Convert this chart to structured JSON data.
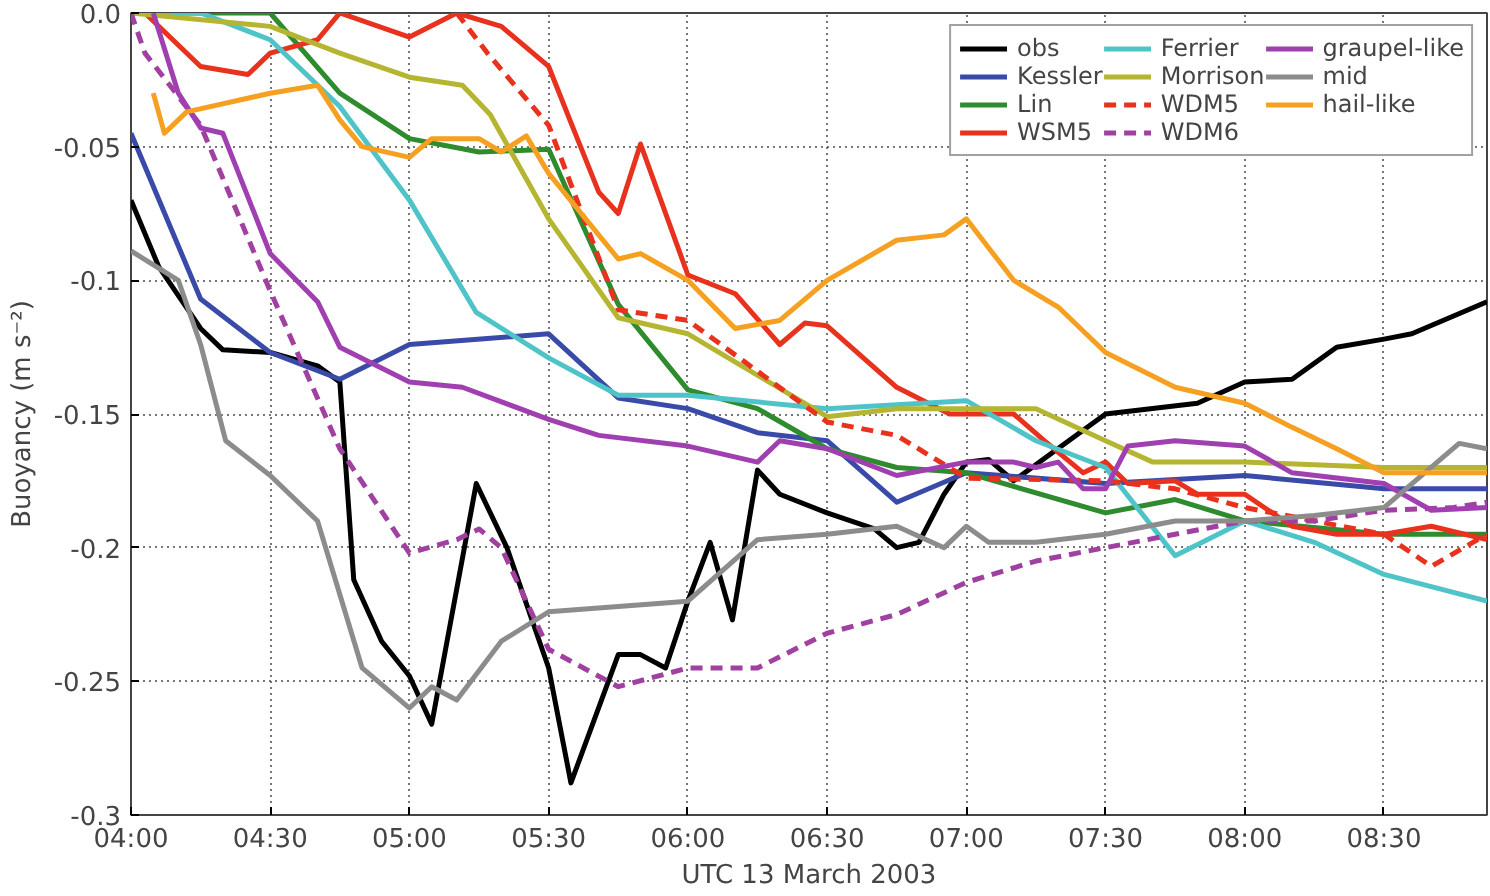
{
  "chart_data": {
    "type": "line",
    "xlabel": "UTC 13 March 2003",
    "ylabel": "Buoyancy (m s⁻²)",
    "xlim": [
      4,
      8.87
    ],
    "ylim": [
      -0.3,
      0
    ],
    "xticks": [
      {
        "value": 4,
        "label": "04:00"
      },
      {
        "value": 4.5,
        "label": "04:30"
      },
      {
        "value": 5,
        "label": "05:00"
      },
      {
        "value": 5.5,
        "label": "05:30"
      },
      {
        "value": 6,
        "label": "06:00"
      },
      {
        "value": 6.5,
        "label": "06:30"
      },
      {
        "value": 7,
        "label": "07:00"
      },
      {
        "value": 7.5,
        "label": "07:30"
      },
      {
        "value": 8,
        "label": "08:00"
      },
      {
        "value": 8.5,
        "label": "08:30"
      }
    ],
    "yticks": [
      {
        "value": 0,
        "label": "0.0"
      },
      -0.05,
      -0.1,
      -0.15,
      -0.2,
      -0.25,
      -0.3
    ],
    "grid": true,
    "legend": "top right",
    "series": [
      {
        "name": "obs",
        "color": "#000000",
        "line_style": "solid",
        "x": [
          4.0,
          4.1,
          4.25,
          4.33,
          4.5,
          4.67,
          4.75,
          4.8,
          4.9,
          5.0,
          5.08,
          5.24,
          5.35,
          5.5,
          5.58,
          5.75,
          5.83,
          5.92,
          6.0,
          6.08,
          6.16,
          6.25,
          6.33,
          6.5,
          6.67,
          6.75,
          6.83,
          6.92,
          7.0,
          7.08,
          7.17,
          7.5,
          7.83,
          8.0,
          8.17,
          8.33,
          8.5,
          8.6,
          8.87
        ],
        "values": [
          -0.07,
          -0.095,
          -0.118,
          -0.126,
          -0.127,
          -0.132,
          -0.138,
          -0.212,
          -0.235,
          -0.248,
          -0.266,
          -0.176,
          -0.2,
          -0.245,
          -0.288,
          -0.24,
          -0.24,
          -0.245,
          -0.22,
          -0.198,
          -0.227,
          -0.171,
          -0.18,
          -0.187,
          -0.193,
          -0.2,
          -0.198,
          -0.18,
          -0.168,
          -0.167,
          -0.175,
          -0.15,
          -0.146,
          -0.138,
          -0.137,
          -0.125,
          -0.122,
          -0.12,
          -0.108
        ]
      },
      {
        "name": "Kessler",
        "color": "#3a4aa8",
        "line_style": "solid",
        "x": [
          4.0,
          4.25,
          4.5,
          4.75,
          5.0,
          5.5,
          5.75,
          6.0,
          6.25,
          6.5,
          6.75,
          7.0,
          7.5,
          8.0,
          8.5,
          8.87
        ],
        "values": [
          -0.045,
          -0.107,
          -0.127,
          -0.137,
          -0.124,
          -0.12,
          -0.144,
          -0.148,
          -0.157,
          -0.16,
          -0.183,
          -0.172,
          -0.176,
          -0.173,
          -0.178,
          -0.178
        ]
      },
      {
        "name": "Lin",
        "color": "#2e8b2e",
        "line_style": "solid",
        "x": [
          4.0,
          4.5,
          4.75,
          5.0,
          5.25,
          5.5,
          5.75,
          6.0,
          6.25,
          6.5,
          6.75,
          7.0,
          7.5,
          7.75,
          8.0,
          8.5,
          8.87
        ],
        "values": [
          0,
          0,
          -0.03,
          -0.047,
          -0.052,
          -0.051,
          -0.109,
          -0.141,
          -0.148,
          -0.163,
          -0.17,
          -0.172,
          -0.187,
          -0.182,
          -0.19,
          -0.195,
          -0.195
        ]
      },
      {
        "name": "WSM5",
        "color": "#e8321e",
        "line_style": "solid",
        "x": [
          4.05,
          4.25,
          4.42,
          4.5,
          4.67,
          4.75,
          5.0,
          5.17,
          5.33,
          5.5,
          5.58,
          5.68,
          5.75,
          5.83,
          6.0,
          6.17,
          6.33,
          6.42,
          6.5,
          6.75,
          6.94,
          7.0,
          7.17,
          7.28,
          7.42,
          7.5,
          7.58,
          7.75,
          7.83,
          8.0,
          8.17,
          8.33,
          8.5,
          8.67,
          8.87
        ],
        "values": [
          0,
          -0.02,
          -0.023,
          -0.015,
          -0.01,
          0,
          -0.009,
          0,
          -0.005,
          -0.02,
          -0.041,
          -0.067,
          -0.075,
          -0.049,
          -0.098,
          -0.105,
          -0.124,
          -0.116,
          -0.117,
          -0.14,
          -0.15,
          -0.15,
          -0.15,
          -0.16,
          -0.172,
          -0.168,
          -0.176,
          -0.175,
          -0.18,
          -0.18,
          -0.192,
          -0.195,
          -0.195,
          -0.192,
          -0.197
        ]
      },
      {
        "name": "Ferrier",
        "color": "#4fc4c8",
        "line_style": "solid",
        "x": [
          4.0,
          4.25,
          4.5,
          4.75,
          5.0,
          5.24,
          5.5,
          5.75,
          6.0,
          6.5,
          7.0,
          7.25,
          7.5,
          7.75,
          8.0,
          8.25,
          8.5,
          8.87
        ],
        "values": [
          0,
          0,
          -0.01,
          -0.035,
          -0.07,
          -0.112,
          -0.129,
          -0.143,
          -0.143,
          -0.148,
          -0.145,
          -0.16,
          -0.17,
          -0.203,
          -0.19,
          -0.198,
          -0.21,
          -0.22
        ]
      },
      {
        "name": "Morrison",
        "color": "#b5b532",
        "line_style": "solid",
        "x": [
          4.0,
          4.5,
          4.75,
          5.0,
          5.19,
          5.29,
          5.5,
          5.75,
          6.0,
          6.5,
          6.75,
          7.0,
          7.25,
          7.5,
          7.67,
          8.0,
          8.5,
          8.87
        ],
        "values": [
          0,
          -0.005,
          -0.015,
          -0.024,
          -0.027,
          -0.038,
          -0.077,
          -0.114,
          -0.12,
          -0.151,
          -0.148,
          -0.148,
          -0.148,
          -0.16,
          -0.168,
          -0.168,
          -0.17,
          -0.17
        ]
      },
      {
        "name": "WDM5",
        "color": "#e8321e",
        "line_style": "dashed",
        "x": [
          5.17,
          5.28,
          5.5,
          5.75,
          6.0,
          6.5,
          6.75,
          7.0,
          7.5,
          7.75,
          8.0,
          8.5,
          8.67,
          8.87
        ],
        "values": [
          0,
          -0.015,
          -0.042,
          -0.111,
          -0.115,
          -0.153,
          -0.158,
          -0.174,
          -0.175,
          -0.178,
          -0.185,
          -0.195,
          -0.207,
          -0.195
        ]
      },
      {
        "name": "WDM6",
        "color": "#a040a0",
        "line_style": "dashed",
        "x": [
          4.0,
          4.05,
          4.25,
          4.5,
          4.75,
          5.0,
          5.17,
          5.25,
          5.33,
          5.5,
          5.75,
          6.0,
          6.25,
          6.5,
          6.75,
          7.0,
          7.25,
          7.5,
          7.75,
          8.0,
          8.25,
          8.5,
          8.75,
          8.87
        ],
        "values": [
          0,
          -0.015,
          -0.042,
          -0.104,
          -0.163,
          -0.202,
          -0.197,
          -0.193,
          -0.2,
          -0.238,
          -0.252,
          -0.245,
          -0.245,
          -0.232,
          -0.225,
          -0.213,
          -0.205,
          -0.2,
          -0.195,
          -0.19,
          -0.19,
          -0.186,
          -0.185,
          -0.183
        ]
      },
      {
        "name": "graupel-like",
        "color": "#a040b0",
        "line_style": "solid",
        "x": [
          4.08,
          4.17,
          4.25,
          4.33,
          4.5,
          4.67,
          4.75,
          5.0,
          5.19,
          5.5,
          5.68,
          6.0,
          6.25,
          6.33,
          6.5,
          6.75,
          7.0,
          7.17,
          7.25,
          7.33,
          7.42,
          7.5,
          7.58,
          7.75,
          8.0,
          8.17,
          8.5,
          8.67,
          8.87
        ],
        "values": [
          0,
          -0.03,
          -0.043,
          -0.045,
          -0.09,
          -0.108,
          -0.125,
          -0.138,
          -0.14,
          -0.152,
          -0.158,
          -0.162,
          -0.168,
          -0.16,
          -0.163,
          -0.173,
          -0.168,
          -0.168,
          -0.17,
          -0.168,
          -0.178,
          -0.178,
          -0.162,
          -0.16,
          -0.162,
          -0.172,
          -0.176,
          -0.186,
          -0.185
        ]
      },
      {
        "name": "mid",
        "color": "#8c8c8c",
        "line_style": "solid",
        "x": [
          4.0,
          4.17,
          4.25,
          4.34,
          4.5,
          4.67,
          4.83,
          5.0,
          5.08,
          5.17,
          5.33,
          5.5,
          5.75,
          6.0,
          6.25,
          6.5,
          6.75,
          6.92,
          7.0,
          7.08,
          7.25,
          7.5,
          7.75,
          8.0,
          8.25,
          8.5,
          8.77,
          8.87
        ],
        "values": [
          -0.089,
          -0.1,
          -0.124,
          -0.16,
          -0.173,
          -0.19,
          -0.245,
          -0.26,
          -0.252,
          -0.257,
          -0.235,
          -0.224,
          -0.222,
          -0.22,
          -0.197,
          -0.195,
          -0.192,
          -0.2,
          -0.192,
          -0.198,
          -0.198,
          -0.195,
          -0.19,
          -0.19,
          -0.188,
          -0.185,
          -0.161,
          -0.163
        ]
      },
      {
        "name": "hail-like",
        "color": "#f5a020",
        "line_style": "solid",
        "x": [
          4.08,
          4.12,
          4.2,
          4.5,
          4.67,
          4.75,
          4.83,
          5.0,
          5.08,
          5.25,
          5.33,
          5.42,
          5.5,
          5.75,
          5.83,
          6.0,
          6.17,
          6.33,
          6.5,
          6.75,
          6.92,
          7.0,
          7.17,
          7.33,
          7.5,
          7.75,
          8.0,
          8.17,
          8.33,
          8.5,
          8.87
        ],
        "values": [
          -0.03,
          -0.045,
          -0.037,
          -0.03,
          -0.027,
          -0.04,
          -0.05,
          -0.054,
          -0.047,
          -0.047,
          -0.052,
          -0.046,
          -0.06,
          -0.092,
          -0.09,
          -0.1,
          -0.118,
          -0.115,
          -0.1,
          -0.085,
          -0.083,
          -0.077,
          -0.1,
          -0.11,
          -0.127,
          -0.14,
          -0.146,
          -0.155,
          -0.163,
          -0.172,
          -0.172
        ]
      }
    ]
  }
}
